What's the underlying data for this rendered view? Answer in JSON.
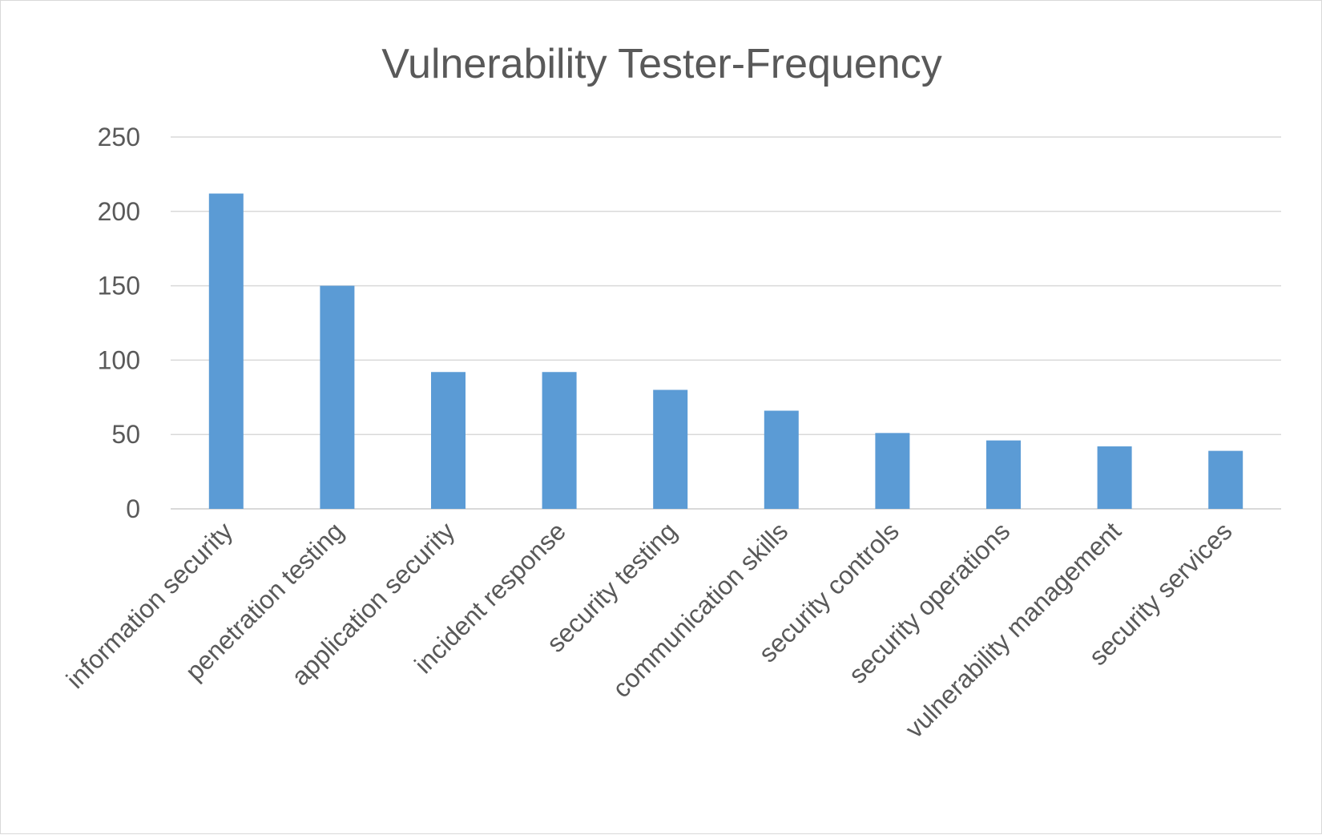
{
  "chart_data": {
    "type": "bar",
    "title": "Vulnerability Tester-Frequency",
    "xlabel": "",
    "ylabel": "",
    "categories": [
      "information security",
      "penetration testing",
      "application security",
      "incident response",
      "security testing",
      "communication skills",
      "security controls",
      "security operations",
      "vulnerability management",
      "security services"
    ],
    "values": [
      212,
      150,
      92,
      92,
      80,
      66,
      51,
      46,
      42,
      39
    ],
    "ylim": [
      0,
      250
    ],
    "yticks": [
      0,
      50,
      100,
      150,
      200,
      250
    ],
    "grid": true,
    "legend": "none",
    "bar_color": "#5b9bd5",
    "grid_color": "#d9d9d9",
    "text_color": "#595959"
  }
}
